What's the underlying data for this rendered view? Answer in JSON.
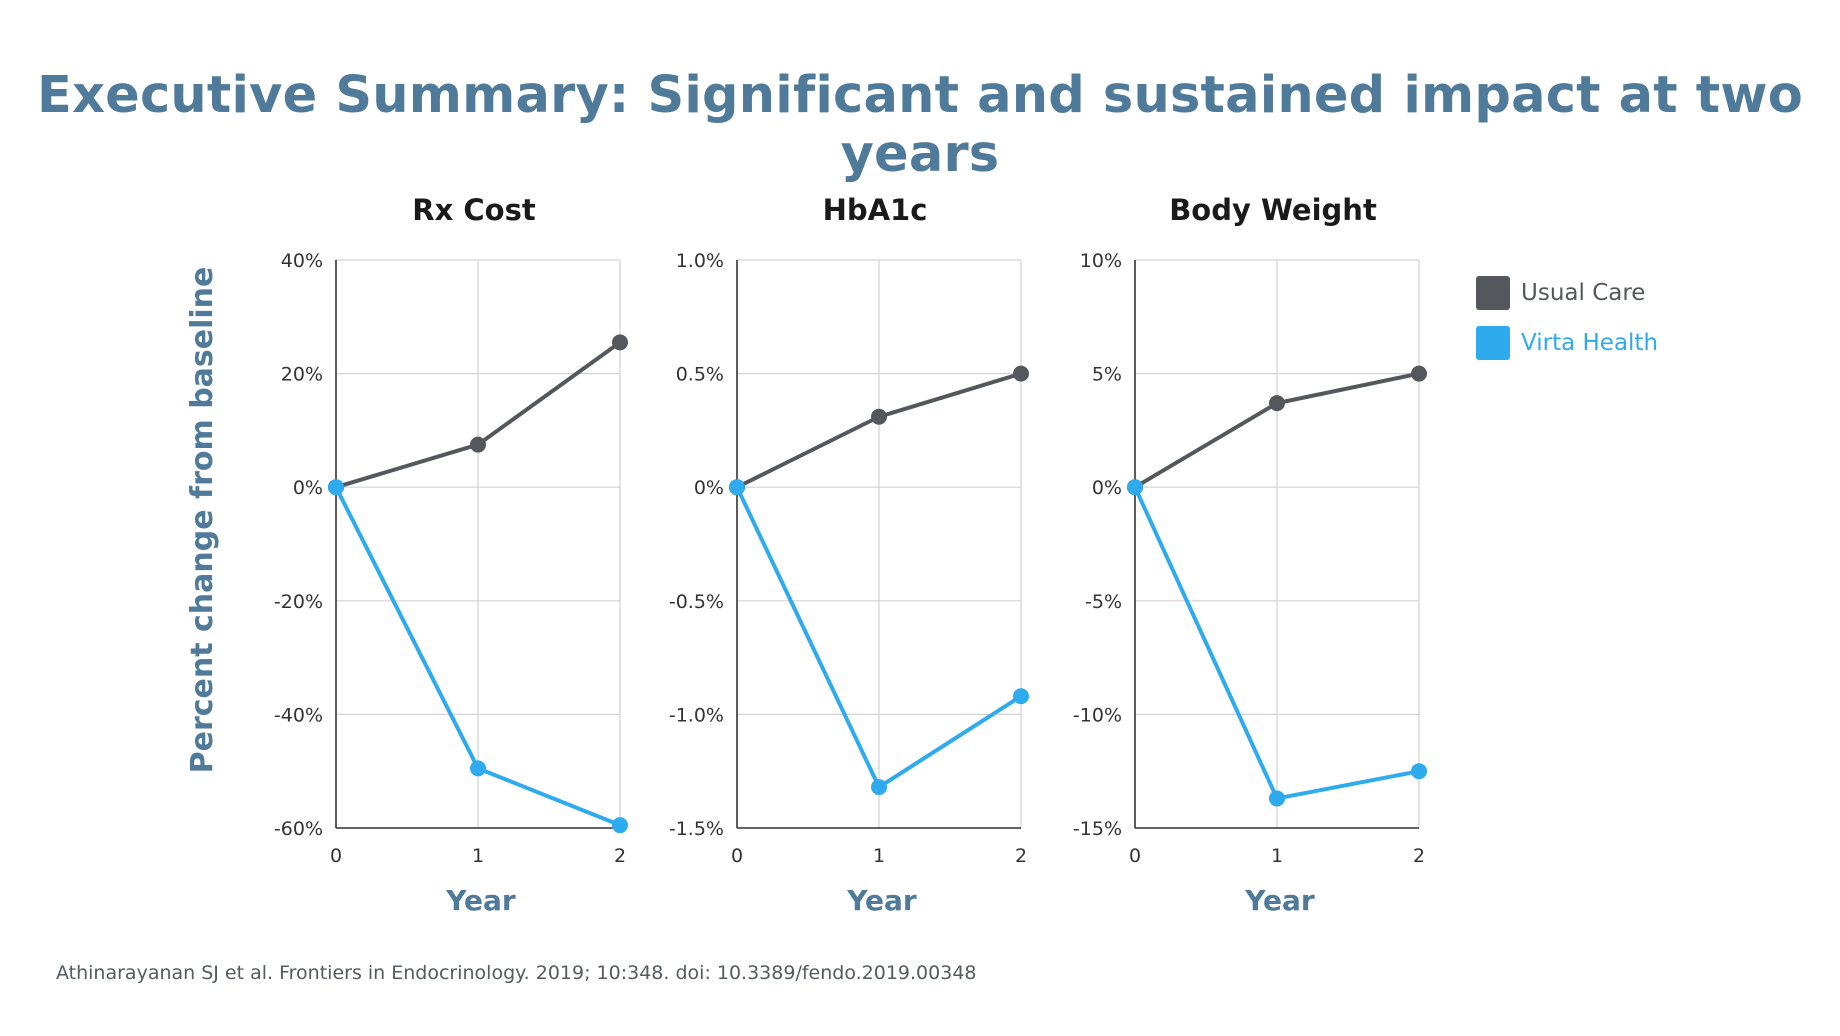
{
  "title": "Executive Summary: Significant and sustained impact at two years",
  "citation": "Athinarayanan SJ et al. Frontiers in Endocrinology. 2019; 10:348. doi: 10.3389/fendo.2019.00348",
  "colors": {
    "title": "#4f7a9a",
    "usual_care": "#54585c",
    "virta_health": "#2eaaee",
    "grid": "#d3d3d3",
    "axis": "#333333"
  },
  "legend": [
    {
      "label": "Usual Care",
      "color": "#54585c"
    },
    {
      "label": "Virta Health",
      "color": "#2eaaee"
    }
  ],
  "shared_ylabel": "Percent change from baseline",
  "chart_data": [
    {
      "type": "line",
      "title": "Rx Cost",
      "xlabel": "Year",
      "x": [
        0,
        1,
        2
      ],
      "ylim": [
        -60,
        40
      ],
      "yticks": [
        40,
        20,
        0,
        -20,
        -40,
        -60
      ],
      "ytick_labels": [
        "40%",
        "20%",
        "0%",
        "-20%",
        "-40%",
        "-60%"
      ],
      "series": [
        {
          "name": "Usual Care",
          "values": [
            0,
            7.5,
            25.5
          ]
        },
        {
          "name": "Virta Health",
          "values": [
            0,
            -49.5,
            -59.5
          ]
        }
      ]
    },
    {
      "type": "line",
      "title": "HbA1c",
      "xlabel": "Year",
      "x": [
        0,
        1,
        2
      ],
      "ylim": [
        -1.5,
        1.0
      ],
      "yticks": [
        1.0,
        0.5,
        0,
        -0.5,
        -1.0,
        -1.5
      ],
      "ytick_labels": [
        "1.0%",
        "0.5%",
        "0%",
        "-0.5%",
        "-1.0%",
        "-1.5%"
      ],
      "series": [
        {
          "name": "Usual Care",
          "values": [
            0,
            0.31,
            0.5
          ]
        },
        {
          "name": "Virta Health",
          "values": [
            0,
            -1.32,
            -0.92
          ]
        }
      ]
    },
    {
      "type": "line",
      "title": "Body Weight",
      "xlabel": "Year",
      "x": [
        0,
        1,
        2
      ],
      "ylim": [
        -15,
        10
      ],
      "yticks": [
        10,
        5,
        0,
        -5,
        -10,
        -15
      ],
      "ytick_labels": [
        "10%",
        "5%",
        "0%",
        "-5%",
        "-10%",
        "-15%"
      ],
      "series": [
        {
          "name": "Usual Care",
          "values": [
            0,
            3.7,
            5.0
          ]
        },
        {
          "name": "Virta Health",
          "values": [
            0,
            -13.7,
            -12.5
          ]
        }
      ]
    }
  ]
}
